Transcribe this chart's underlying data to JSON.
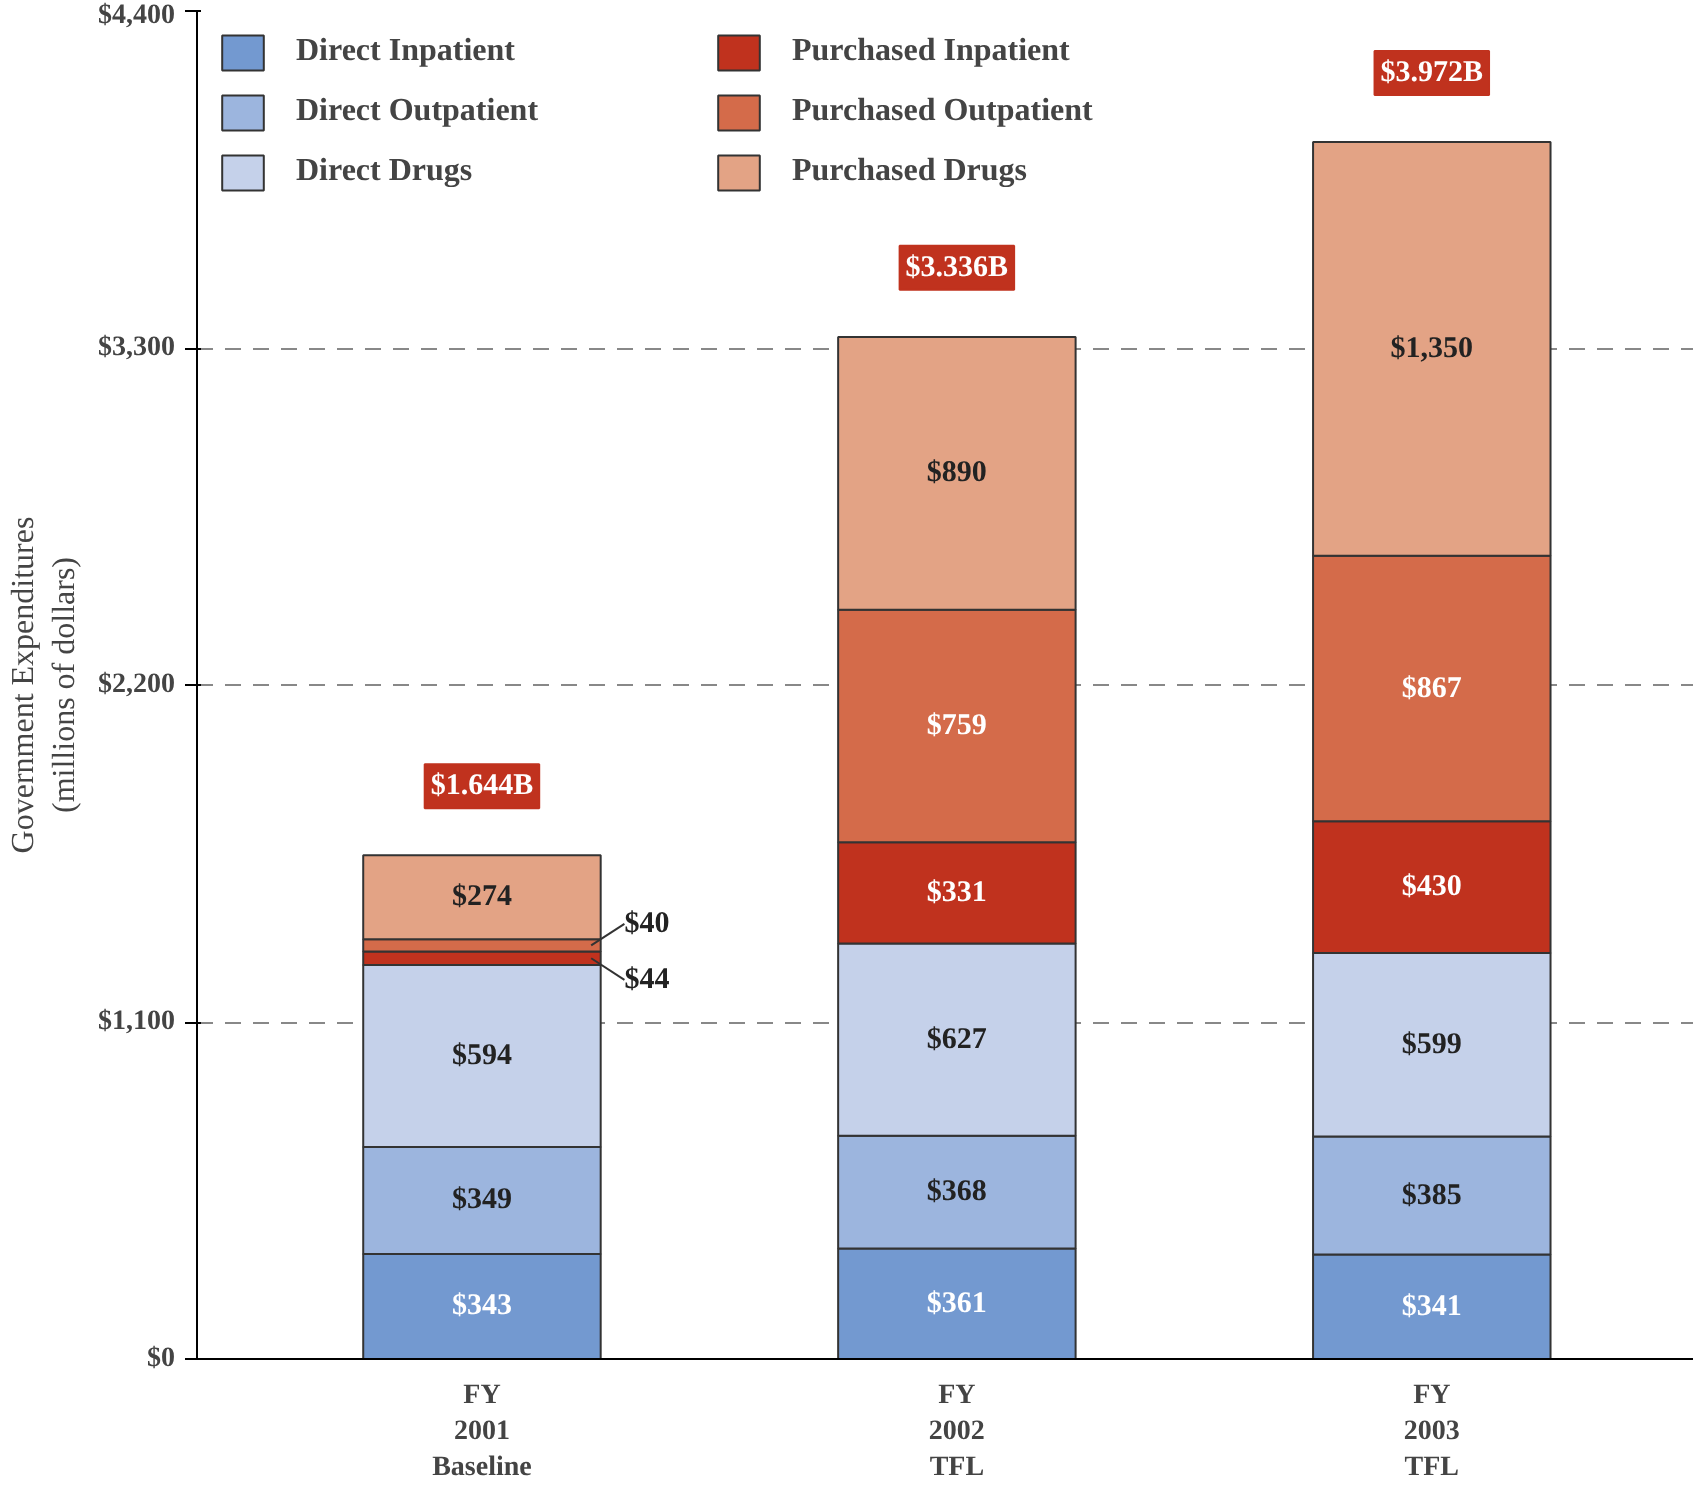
{
  "chart_data": {
    "type": "bar",
    "stacked": true,
    "ylabel": "Government Expenditures\n(millions of dollars)",
    "categories": [
      "FY\n2001\nBaseline",
      "FY\n2002\nTFL",
      "FY\n2003\nTFL"
    ],
    "series": [
      {
        "name": "Direct Inpatient",
        "color": "#7399d0",
        "values": [
          343,
          361,
          341
        ],
        "value_labels": [
          "$343",
          "$361",
          "$341"
        ]
      },
      {
        "name": "Direct Outpatient",
        "color": "#9cb5de",
        "values": [
          349,
          368,
          385
        ],
        "value_labels": [
          "$349",
          "$368",
          "$385"
        ]
      },
      {
        "name": "Direct Drugs",
        "color": "#c5d1ea",
        "values": [
          594,
          627,
          599
        ],
        "value_labels": [
          "$594",
          "$627",
          "$599"
        ]
      },
      {
        "name": "Purchased Inpatient",
        "color": "#c0321e",
        "values": [
          44,
          331,
          430
        ],
        "value_labels": [
          "$44",
          "$331",
          "$430"
        ]
      },
      {
        "name": "Purchased Outpatient",
        "color": "#d46b4a",
        "values": [
          40,
          759,
          867
        ],
        "value_labels": [
          "$40",
          "$759",
          "$867"
        ]
      },
      {
        "name": "Purchased Drugs",
        "color": "#e3a385",
        "values": [
          274,
          890,
          1350
        ],
        "value_labels": [
          "$274",
          "$890",
          "$1,350"
        ]
      }
    ],
    "totals": [
      "$1.644B",
      "$3.336B",
      "$3.972B"
    ],
    "ylim": [
      0,
      4400
    ],
    "yticks": [
      {
        "value": 0,
        "label": "$0"
      },
      {
        "value": 1100,
        "label": "$1,100"
      },
      {
        "value": 2200,
        "label": "$2,200"
      },
      {
        "value": 3300,
        "label": "$3,300"
      },
      {
        "value": 4400,
        "label": "$4,400"
      }
    ],
    "grid": "y",
    "legend": "top left"
  }
}
